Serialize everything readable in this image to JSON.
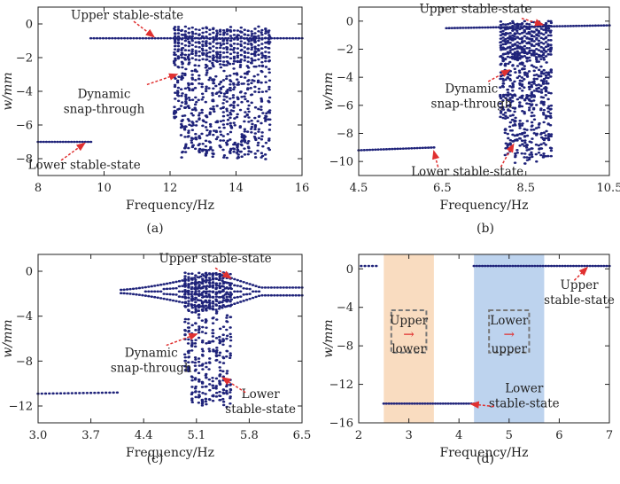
{
  "chart_data": [
    {
      "panel": "a",
      "type": "scatter",
      "caption": "(a)",
      "xlabel": "Frequency/Hz",
      "ylabel": "w/mm",
      "xlim": [
        8,
        16
      ],
      "ylim": [
        -9,
        1
      ],
      "xticks": [
        8,
        10,
        12,
        14,
        16
      ],
      "yticks": [
        0,
        -2,
        -4,
        -6,
        -8
      ],
      "segments": [
        {
          "x": [
            8,
            9.6
          ],
          "y": [
            -7.0,
            -7.0
          ],
          "n": 20
        },
        {
          "x": [
            9.6,
            16
          ],
          "y": [
            -0.85,
            -0.85
          ],
          "n": 70
        }
      ],
      "bands": {
        "x": [
          12.15,
          15.0
        ],
        "n": 28,
        "top": -0.15,
        "bottom": [
          -7.6,
          -8.2
        ],
        "bottomStart": -5.6
      },
      "annotations": [
        {
          "text": "Upper stable-state",
          "lines": [
            "Upper stable-state"
          ],
          "lx": 10.7,
          "ly": 0.3,
          "ax": 10.9,
          "ay": 0.15,
          "tx": 11.5,
          "ty": -0.75
        },
        {
          "text": "Dynamic snap-through",
          "lines": [
            "Dynamic",
            "snap-through"
          ],
          "lx": 10.0,
          "ly": -4.4,
          "ax": 11.3,
          "ay": -3.6,
          "tx": 12.2,
          "ty": -3.0
        },
        {
          "text": "Lower stable-state",
          "lines": [
            "Lower stable-state"
          ],
          "lx": 9.4,
          "ly": -8.6,
          "ax": 8.7,
          "ay": -8.1,
          "tx": 9.4,
          "ty": -7.1
        }
      ]
    },
    {
      "panel": "b",
      "type": "scatter",
      "caption": "(b)",
      "xlabel": "Frequency/Hz",
      "ylabel": "w/mm",
      "xlim": [
        4.5,
        10.5
      ],
      "ylim": [
        -11,
        1
      ],
      "xticks": [
        4.5,
        6.5,
        8.5,
        10.5
      ],
      "yticks": [
        0,
        -2,
        -4,
        -6,
        -8,
        -10
      ],
      "segments": [
        {
          "x": [
            4.5,
            6.3
          ],
          "y": [
            -9.2,
            -9.0
          ],
          "n": 28
        },
        {
          "x": [
            6.6,
            10.5
          ],
          "y": [
            -0.5,
            -0.3
          ],
          "n": 60
        }
      ],
      "bands": {
        "x": [
          7.9,
          9.1
        ],
        "n": 22,
        "top": 0.0,
        "bottom": [
          -9.5,
          -10.2
        ],
        "bottomStart": -7.0
      },
      "annotations": [
        {
          "text": "Upper stable-state",
          "lines": [
            "Upper stable-state"
          ],
          "lx": 7.3,
          "ly": 0.6,
          "ax": 8.4,
          "ay": 0.2,
          "tx": 8.9,
          "ty": -0.25
        },
        {
          "text": "Dynamic snap-through",
          "lines": [
            "Dynamic",
            "snap-through"
          ],
          "lx": 7.2,
          "ly": -5.1,
          "ax": 7.6,
          "ay": -4.3,
          "tx": 8.1,
          "ty": -3.5
        },
        {
          "text": "Lower stable-state",
          "lines": [
            "Lower stable-state"
          ],
          "lx": 7.1,
          "ly": -11.0,
          "ax": 7.9,
          "ay": -10.4,
          "tx": 8.2,
          "ty": -8.8
        }
      ],
      "extra_arrows": [
        {
          "ax": 6.4,
          "ay": -10.4,
          "tx": 6.3,
          "ty": -9.3
        }
      ]
    },
    {
      "panel": "c",
      "type": "scatter",
      "caption": "(c)",
      "xlabel": "Frequency/Hz",
      "ylabel": "w/mm",
      "xlim": [
        3.0,
        6.5
      ],
      "ylim": [
        -13.5,
        1.5
      ],
      "xticks": [
        3.0,
        3.7,
        4.4,
        5.1,
        5.8,
        6.5
      ],
      "yticks": [
        0,
        -4,
        -8,
        -12
      ],
      "segments": [
        {
          "x": [
            3.0,
            4.05
          ],
          "y": [
            -10.9,
            -10.8
          ],
          "n": 22
        }
      ],
      "bulb": {
        "x": [
          4.1,
          6.5
        ],
        "center": -1.8,
        "n": 60,
        "peak": 5.35
      },
      "bands": {
        "x": [
          4.95,
          5.55
        ],
        "n": 14,
        "top": -0.1,
        "bottom": [
          -11.5,
          -12.2
        ],
        "bottomStart": -9.0
      },
      "annotations": [
        {
          "text": "Upper stable-state",
          "lines": [
            "Upper stable-state"
          ],
          "lx": 5.35,
          "ly": 0.8,
          "ax": 5.35,
          "ay": 0.3,
          "tx": 5.55,
          "ty": -0.6
        },
        {
          "text": "Dynamic snap-through",
          "lines": [
            "Dynamic",
            "snap-through"
          ],
          "lx": 4.5,
          "ly": -7.6,
          "ax": 4.7,
          "ay": -6.6,
          "tx": 5.1,
          "ty": -5.6
        },
        {
          "text": "Lower stable-state",
          "lines": [
            "Lower",
            "stable-state"
          ],
          "lx": 5.95,
          "ly": -11.3,
          "ax": 5.75,
          "ay": -10.8,
          "tx": 5.45,
          "ty": -9.5
        }
      ]
    },
    {
      "panel": "d",
      "type": "scatter",
      "caption": "(d)",
      "xlabel": "Frequency/Hz",
      "ylabel": "w/mm",
      "xlim": [
        2,
        7
      ],
      "ylim": [
        -16,
        1.5
      ],
      "xticks": [
        2,
        3,
        4,
        5,
        6,
        7
      ],
      "yticks": [
        0,
        -4,
        -8,
        -12,
        -16
      ],
      "segments": [
        {
          "x": [
            2.05,
            2.35
          ],
          "y": [
            0.3,
            0.3
          ],
          "n": 5
        },
        {
          "x": [
            4.3,
            7.0
          ],
          "y": [
            0.3,
            0.3
          ],
          "n": 50
        },
        {
          "x": [
            2.5,
            4.3
          ],
          "y": [
            -14.0,
            -14.0
          ],
          "n": 36
        }
      ],
      "regions": [
        {
          "x": [
            2.5,
            3.5
          ],
          "color": "#f9dcc0"
        },
        {
          "x": [
            4.3,
            5.7
          ],
          "color": "#bdd3ee"
        }
      ],
      "boxes": [
        {
          "lines": [
            "Upper",
            "lower"
          ],
          "x": [
            2.65,
            3.35
          ],
          "y": [
            -4.3,
            -8.7
          ],
          "arrow": "→"
        },
        {
          "lines": [
            "Lower",
            "upper"
          ],
          "x": [
            4.6,
            5.4
          ],
          "y": [
            -4.3,
            -8.7
          ],
          "arrow": "→"
        }
      ],
      "annotations": [
        {
          "text": "Upper stable-state",
          "lines": [
            "Upper",
            "stable-state"
          ],
          "lx": 6.4,
          "ly": -2.1,
          "ax": 6.3,
          "ay": -1.2,
          "tx": 6.55,
          "ty": 0.1
        },
        {
          "text": "Lower stable-state",
          "lines": [
            "Lower",
            "stable-state"
          ],
          "lx": 5.3,
          "ly": -12.8,
          "ax": 4.7,
          "ay": -14.3,
          "tx": 4.25,
          "ty": -14.05
        }
      ]
    }
  ],
  "colors": {
    "marker": "#1f237a",
    "arrow": "#e03030",
    "box": "#777777",
    "frame": "#222222"
  }
}
